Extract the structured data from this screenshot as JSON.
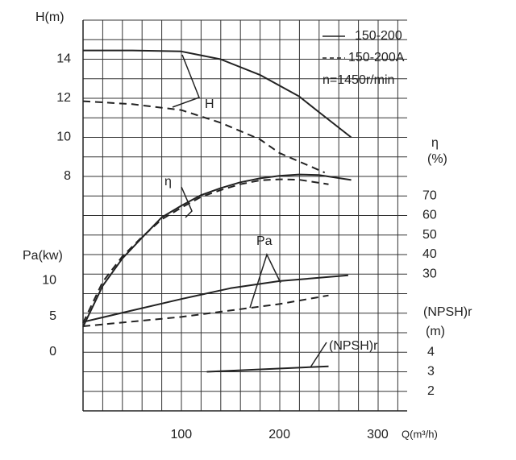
{
  "note": "n=1450r/min",
  "x_label": "Q(m³/h)",
  "chart_data": [
    {
      "type": "line",
      "y_label": "H(m)",
      "annotation": "H",
      "xlim": [
        0,
        330
      ],
      "xticks": [
        100,
        200,
        300
      ],
      "ylim": [
        -4,
        16
      ],
      "yticks": [
        8,
        10,
        12,
        14
      ],
      "series": [
        {
          "name": "150-200",
          "dashed": false,
          "color": "#222222",
          "x": [
            0,
            50,
            100,
            140,
            180,
            220,
            240,
            273
          ],
          "values": [
            14.45,
            14.45,
            14.4,
            14.0,
            13.2,
            12.1,
            11.3,
            10.0
          ]
        },
        {
          "name": "150-200A",
          "dashed": true,
          "color": "#222222",
          "x": [
            0,
            50,
            100,
            140,
            180,
            200,
            246
          ],
          "values": [
            11.85,
            11.7,
            11.4,
            10.75,
            9.9,
            9.2,
            8.2
          ]
        }
      ]
    },
    {
      "type": "line",
      "y_label": "η",
      "y_unit": "(%)",
      "annotation": "η",
      "xlim": [
        0,
        330
      ],
      "ylim": [
        -40,
        160
      ],
      "yticks": [
        30,
        40,
        50,
        60,
        70
      ],
      "series": [
        {
          "dashed": false,
          "color": "#222222",
          "x": [
            0,
            20,
            40,
            60,
            80,
            100,
            120,
            140,
            160,
            180,
            200,
            220,
            240,
            273
          ],
          "values": [
            3,
            24,
            38,
            48.6,
            59,
            65,
            70.4,
            74,
            77,
            79,
            80.3,
            81,
            80.7,
            78.2
          ]
        },
        {
          "dashed": true,
          "color": "#222222",
          "x": [
            0,
            20,
            40,
            60,
            80,
            100,
            120,
            140,
            160,
            180,
            200,
            220,
            250
          ],
          "values": [
            5,
            26,
            39,
            49,
            58,
            64,
            69.5,
            73,
            76,
            78,
            78.5,
            78.3,
            76
          ]
        }
      ]
    },
    {
      "type": "line",
      "y_label": "Pa(kw)",
      "annotation": "Pa",
      "xlim": [
        0,
        330
      ],
      "ylim": [
        -8.2,
        46.3
      ],
      "yticks": [
        0,
        5,
        10
      ],
      "series": [
        {
          "dashed": false,
          "color": "#222222",
          "x": [
            0,
            50,
            100,
            150,
            200,
            270
          ],
          "values": [
            4.2,
            5.8,
            7.4,
            8.9,
            9.9,
            10.7
          ]
        },
        {
          "dashed": true,
          "color": "#222222",
          "x": [
            0,
            100,
            150,
            200,
            250
          ],
          "values": [
            3.6,
            4.9,
            5.8,
            6.7,
            7.9
          ]
        }
      ]
    },
    {
      "type": "line",
      "y_label": "(NPSH)r",
      "y_unit": "(m)",
      "annotation": "(NPSH)r",
      "xlim": [
        0,
        330
      ],
      "ylim": [
        1,
        21
      ],
      "yticks": [
        2,
        3,
        4
      ],
      "series": [
        {
          "dashed": false,
          "color": "#222222",
          "x": [
            126,
            250
          ],
          "values": [
            3.0,
            3.28
          ]
        }
      ]
    }
  ]
}
